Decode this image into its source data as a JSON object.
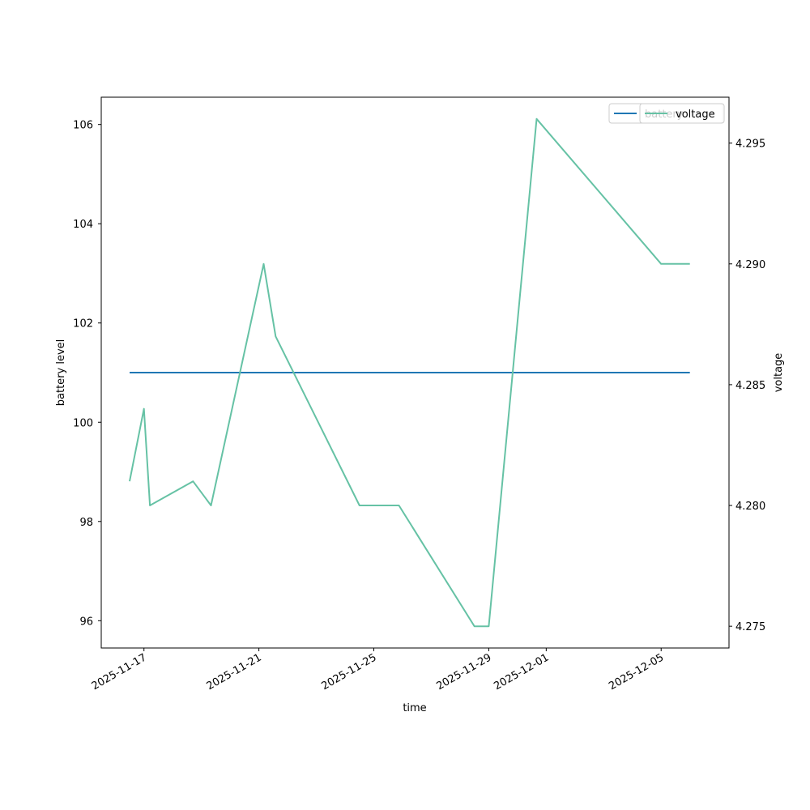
{
  "chart_data": {
    "type": "line",
    "xlabel": "time",
    "ylabel_left": "battery level",
    "ylabel_right": "voltage",
    "x_tick_labels": [
      "2025-11-17",
      "2025-11-21",
      "2025-11-25",
      "2025-11-29",
      "2025-12-01",
      "2025-12-05"
    ],
    "y_left_ticks": [
      96,
      98,
      100,
      102,
      104,
      106
    ],
    "y_right_ticks": [
      "4.275",
      "4.280",
      "4.285",
      "4.290",
      "4.295"
    ],
    "ylim_left": [
      95.45,
      106.55
    ],
    "ylim_right": [
      4.2741,
      4.2969
    ],
    "xlim": [
      "2025-11-16 12:00",
      "2025-12-06 09:00"
    ],
    "legend_placement": "top-right",
    "series": [
      {
        "name": "battery",
        "axis": "left",
        "color": "#1f77b4",
        "points": [
          {
            "x": "2025-11-16 12:00",
            "y": 101
          },
          {
            "x": "2025-12-06 00:00",
            "y": 101
          }
        ]
      },
      {
        "name": "voltage",
        "axis": "right",
        "color": "#66c2a5",
        "points": [
          {
            "x": "2025-11-16 12:00",
            "y": 4.281
          },
          {
            "x": "2025-11-17 00:00",
            "y": 4.284
          },
          {
            "x": "2025-11-17 05:00",
            "y": 4.28
          },
          {
            "x": "2025-11-18 17:00",
            "y": 4.281
          },
          {
            "x": "2025-11-19 08:00",
            "y": 4.28
          },
          {
            "x": "2025-11-21 04:00",
            "y": 4.29
          },
          {
            "x": "2025-11-21 14:00",
            "y": 4.287
          },
          {
            "x": "2025-11-24 12:00",
            "y": 4.28
          },
          {
            "x": "2025-11-25 21:00",
            "y": 4.28
          },
          {
            "x": "2025-11-28 12:00",
            "y": 4.275
          },
          {
            "x": "2025-11-29 00:00",
            "y": 4.275
          },
          {
            "x": "2025-11-30 16:00",
            "y": 4.296
          },
          {
            "x": "2025-12-05 00:00",
            "y": 4.29
          },
          {
            "x": "2025-12-06 00:00",
            "y": 4.29
          }
        ]
      }
    ]
  }
}
